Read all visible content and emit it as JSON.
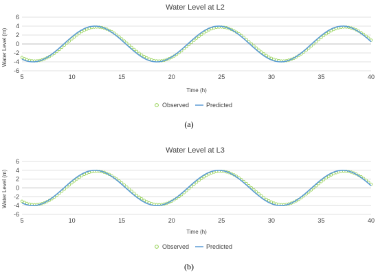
{
  "captions": [
    "(a)",
    "(b)"
  ],
  "colors": {
    "observed": "#92d050",
    "predicted": "#5b9bd5",
    "grid": "#d9d9d9",
    "text": "#404040"
  },
  "chart_data": [
    {
      "type": "line",
      "title": "Water Level at L2",
      "xlabel": "Time (h)",
      "ylabel": "Water Level (m)",
      "xlim": [
        5,
        40
      ],
      "ylim": [
        -6,
        6
      ],
      "xticks": [
        5,
        10,
        15,
        20,
        25,
        30,
        35,
        40
      ],
      "yticks": [
        6,
        4,
        2,
        0,
        -2,
        -4,
        -6
      ],
      "grid": "horizontal",
      "legend": "bottom",
      "series": [
        {
          "name": "Observed",
          "style": "markers",
          "amplitude": 3.8,
          "period_h": 12.42,
          "peak_at_h": 12.5
        },
        {
          "name": "Predicted",
          "style": "line",
          "amplitude": 4.0,
          "period_h": 12.42,
          "peak_at_h": 12.3
        }
      ]
    },
    {
      "type": "line",
      "title": "Water Level at L3",
      "xlabel": "Time (h)",
      "ylabel": "Water Level (m)",
      "xlim": [
        5,
        40
      ],
      "ylim": [
        -6,
        6
      ],
      "xticks": [
        5,
        10,
        15,
        20,
        25,
        30,
        35,
        40
      ],
      "yticks": [
        6,
        4,
        2,
        0,
        -2,
        -4,
        -6
      ],
      "grid": "horizontal",
      "legend": "bottom",
      "series": [
        {
          "name": "Observed",
          "style": "markers",
          "amplitude": 3.8,
          "period_h": 12.42,
          "peak_at_h": 12.5
        },
        {
          "name": "Predicted",
          "style": "line",
          "amplitude": 4.0,
          "period_h": 12.42,
          "peak_at_h": 12.3
        }
      ]
    }
  ]
}
